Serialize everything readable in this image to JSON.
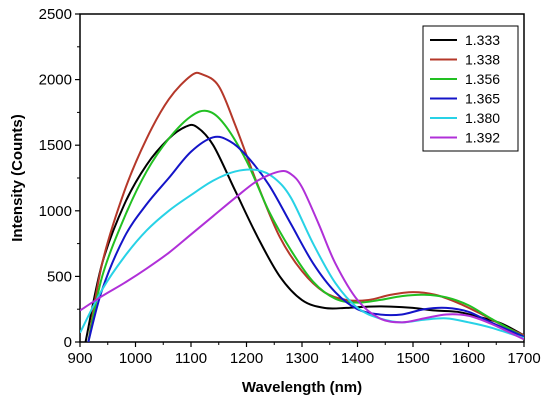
{
  "chart_data": {
    "type": "line",
    "title": "",
    "xlabel": "Wavelength (nm)",
    "ylabel": "Intensity (Counts)",
    "xlim": [
      900,
      1700
    ],
    "ylim": [
      0,
      2500
    ],
    "x_ticks": [
      900,
      1000,
      1100,
      1200,
      1300,
      1400,
      1500,
      1600,
      1700
    ],
    "y_ticks": [
      0,
      500,
      1000,
      1500,
      2000,
      2500
    ],
    "grid": false,
    "legend_position": "top-right",
    "series": [
      {
        "name": "1.333",
        "color": "#000000",
        "x": [
          910,
          940,
          980,
          1020,
          1060,
          1090,
          1110,
          1140,
          1180,
          1220,
          1260,
          1300,
          1340,
          1380,
          1420,
          1460,
          1500,
          1540,
          1580,
          1620,
          1660,
          1700
        ],
        "y": [
          0,
          600,
          1050,
          1350,
          1550,
          1640,
          1640,
          1500,
          1150,
          800,
          500,
          320,
          260,
          260,
          270,
          270,
          260,
          240,
          230,
          190,
          140,
          50
        ]
      },
      {
        "name": "1.338",
        "color": "#b5382a",
        "x": [
          915,
          940,
          980,
          1020,
          1060,
          1100,
          1120,
          1150,
          1180,
          1220,
          1260,
          1300,
          1340,
          1380,
          1420,
          1460,
          1500,
          1540,
          1580,
          1620,
          1660,
          1700
        ],
        "y": [
          0,
          600,
          1150,
          1550,
          1850,
          2030,
          2040,
          1950,
          1650,
          1200,
          800,
          540,
          380,
          320,
          320,
          360,
          380,
          360,
          300,
          220,
          130,
          50
        ]
      },
      {
        "name": "1.356",
        "color": "#22c022",
        "x": [
          915,
          940,
          980,
          1020,
          1060,
          1100,
          1130,
          1160,
          1200,
          1240,
          1280,
          1320,
          1360,
          1400,
          1440,
          1480,
          1520,
          1560,
          1600,
          1640,
          1700
        ],
        "y": [
          0,
          500,
          950,
          1300,
          1550,
          1720,
          1760,
          1660,
          1380,
          1000,
          700,
          460,
          330,
          300,
          320,
          350,
          360,
          340,
          280,
          180,
          40
        ]
      },
      {
        "name": "1.365",
        "color": "#1414c8",
        "x": [
          915,
          940,
          980,
          1020,
          1060,
          1100,
          1140,
          1170,
          1200,
          1240,
          1280,
          1320,
          1360,
          1400,
          1440,
          1480,
          1520,
          1560,
          1600,
          1640,
          1700
        ],
        "y": [
          0,
          400,
          800,
          1050,
          1250,
          1450,
          1560,
          1530,
          1420,
          1200,
          900,
          600,
          380,
          250,
          210,
          210,
          250,
          260,
          230,
          150,
          40
        ]
      },
      {
        "name": "1.380",
        "color": "#28d2e6",
        "x": [
          900,
          940,
          980,
          1020,
          1060,
          1100,
          1140,
          1180,
          1220,
          1250,
          1280,
          1320,
          1360,
          1400,
          1440,
          1480,
          1520,
          1560,
          1600,
          1640,
          1700
        ],
        "y": [
          70,
          400,
          650,
          850,
          1000,
          1120,
          1230,
          1300,
          1310,
          1250,
          1100,
          750,
          450,
          260,
          180,
          150,
          170,
          180,
          150,
          110,
          30
        ]
      },
      {
        "name": "1.392",
        "color": "#b030d8",
        "x": [
          900,
          940,
          980,
          1020,
          1060,
          1100,
          1140,
          1180,
          1220,
          1260,
          1280,
          1300,
          1330,
          1360,
          1400,
          1440,
          1480,
          1520,
          1560,
          1600,
          1640,
          1700
        ],
        "y": [
          240,
          350,
          450,
          560,
          680,
          820,
          960,
          1100,
          1230,
          1300,
          1280,
          1180,
          900,
          600,
          320,
          180,
          150,
          180,
          210,
          200,
          140,
          20
        ]
      }
    ]
  }
}
